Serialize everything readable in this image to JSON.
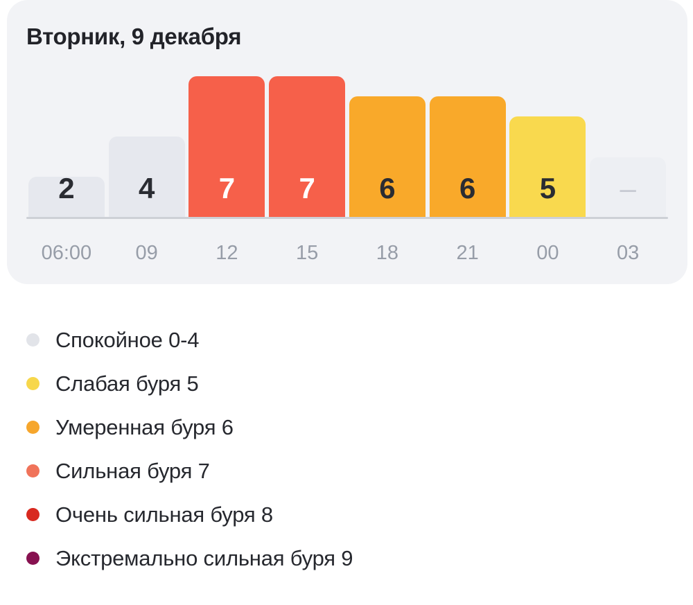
{
  "card": {
    "title": "Вторник, 9 декабря",
    "background": "#f2f3f6"
  },
  "chart_data": {
    "type": "bar",
    "title": "Вторник, 9 декабря",
    "categories": [
      "06:00",
      "09",
      "12",
      "15",
      "18",
      "21",
      "00",
      "03"
    ],
    "values": [
      2,
      4,
      7,
      7,
      6,
      6,
      5,
      null
    ],
    "no_data_label": "–",
    "ylim": [
      0,
      9
    ],
    "grid": false,
    "legend_position": "bottom",
    "colors": {
      "calm": "#e6e8ee",
      "storm5": "#f9d94e",
      "storm6": "#f9a92a",
      "storm7": "#f6604a",
      "no_data": "#edeff3"
    }
  },
  "legend": {
    "items": [
      {
        "label": "Спокойное 0-4",
        "level": "calm",
        "color": "#e2e4e9"
      },
      {
        "label": "Слабая буря 5",
        "level": "storm5",
        "color": "#f7d74b"
      },
      {
        "label": "Умеренная буря 6",
        "level": "storm6",
        "color": "#f6a62c"
      },
      {
        "label": "Сильная буря 7",
        "level": "storm7",
        "color": "#f0735a"
      },
      {
        "label": "Очень сильная буря 8",
        "level": "storm8",
        "color": "#d8291f"
      },
      {
        "label": "Экстремально сильная буря 9",
        "level": "storm9",
        "color": "#871150"
      }
    ]
  }
}
